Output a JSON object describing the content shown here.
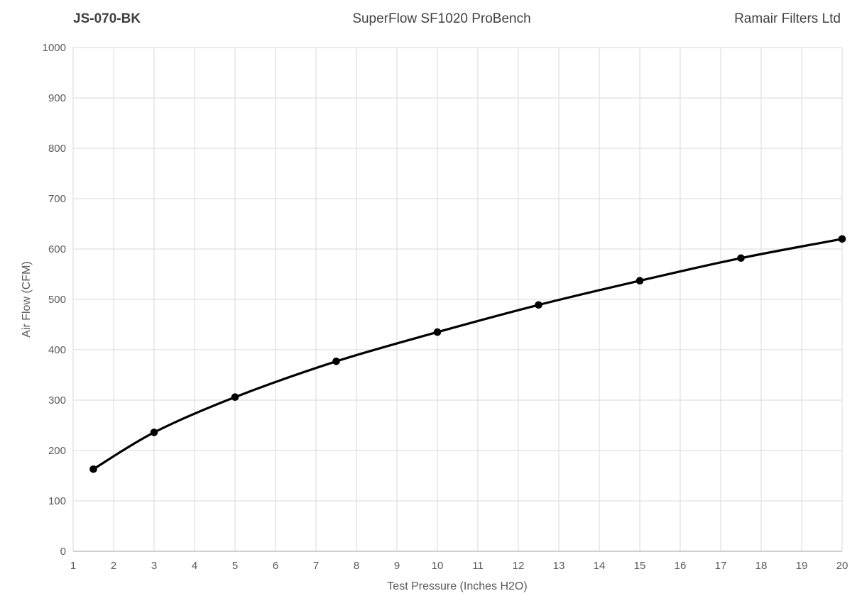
{
  "header": {
    "left": "JS-070-BK",
    "center": "SuperFlow SF1020 ProBench",
    "right": "Ramair Filters Ltd"
  },
  "chart_data": {
    "type": "line",
    "title": "SuperFlow SF1020 ProBench",
    "subtitle_left": "JS-070-BK",
    "subtitle_right": "Ramair Filters Ltd",
    "xlabel": "Test Pressure (Inches H2O)",
    "ylabel": "Air Flow (CFM)",
    "xlim": [
      1,
      20
    ],
    "ylim": [
      0,
      1000
    ],
    "x_ticks": [
      1,
      2,
      3,
      4,
      5,
      6,
      7,
      8,
      9,
      10,
      11,
      12,
      13,
      14,
      15,
      16,
      17,
      18,
      19,
      20
    ],
    "y_ticks": [
      0,
      100,
      200,
      300,
      400,
      500,
      600,
      700,
      800,
      900,
      1000
    ],
    "grid": true,
    "legend": "none",
    "smooth": true,
    "series": [
      {
        "name": "JS-070-BK",
        "points": [
          [
            1.5,
            163
          ],
          [
            3,
            236
          ],
          [
            5,
            306
          ],
          [
            7.5,
            377
          ],
          [
            10,
            435
          ],
          [
            12.5,
            489
          ],
          [
            15,
            537
          ],
          [
            17.5,
            582
          ],
          [
            20,
            620
          ]
        ]
      }
    ],
    "colors": {
      "line": "#000000",
      "marker": "#000000",
      "gridline": "#d9d9d9",
      "axis_line": "#bfbfbf",
      "tick_label": "#595959",
      "axis_title": "#595959",
      "header_text": "#404040",
      "background": "#ffffff"
    }
  }
}
